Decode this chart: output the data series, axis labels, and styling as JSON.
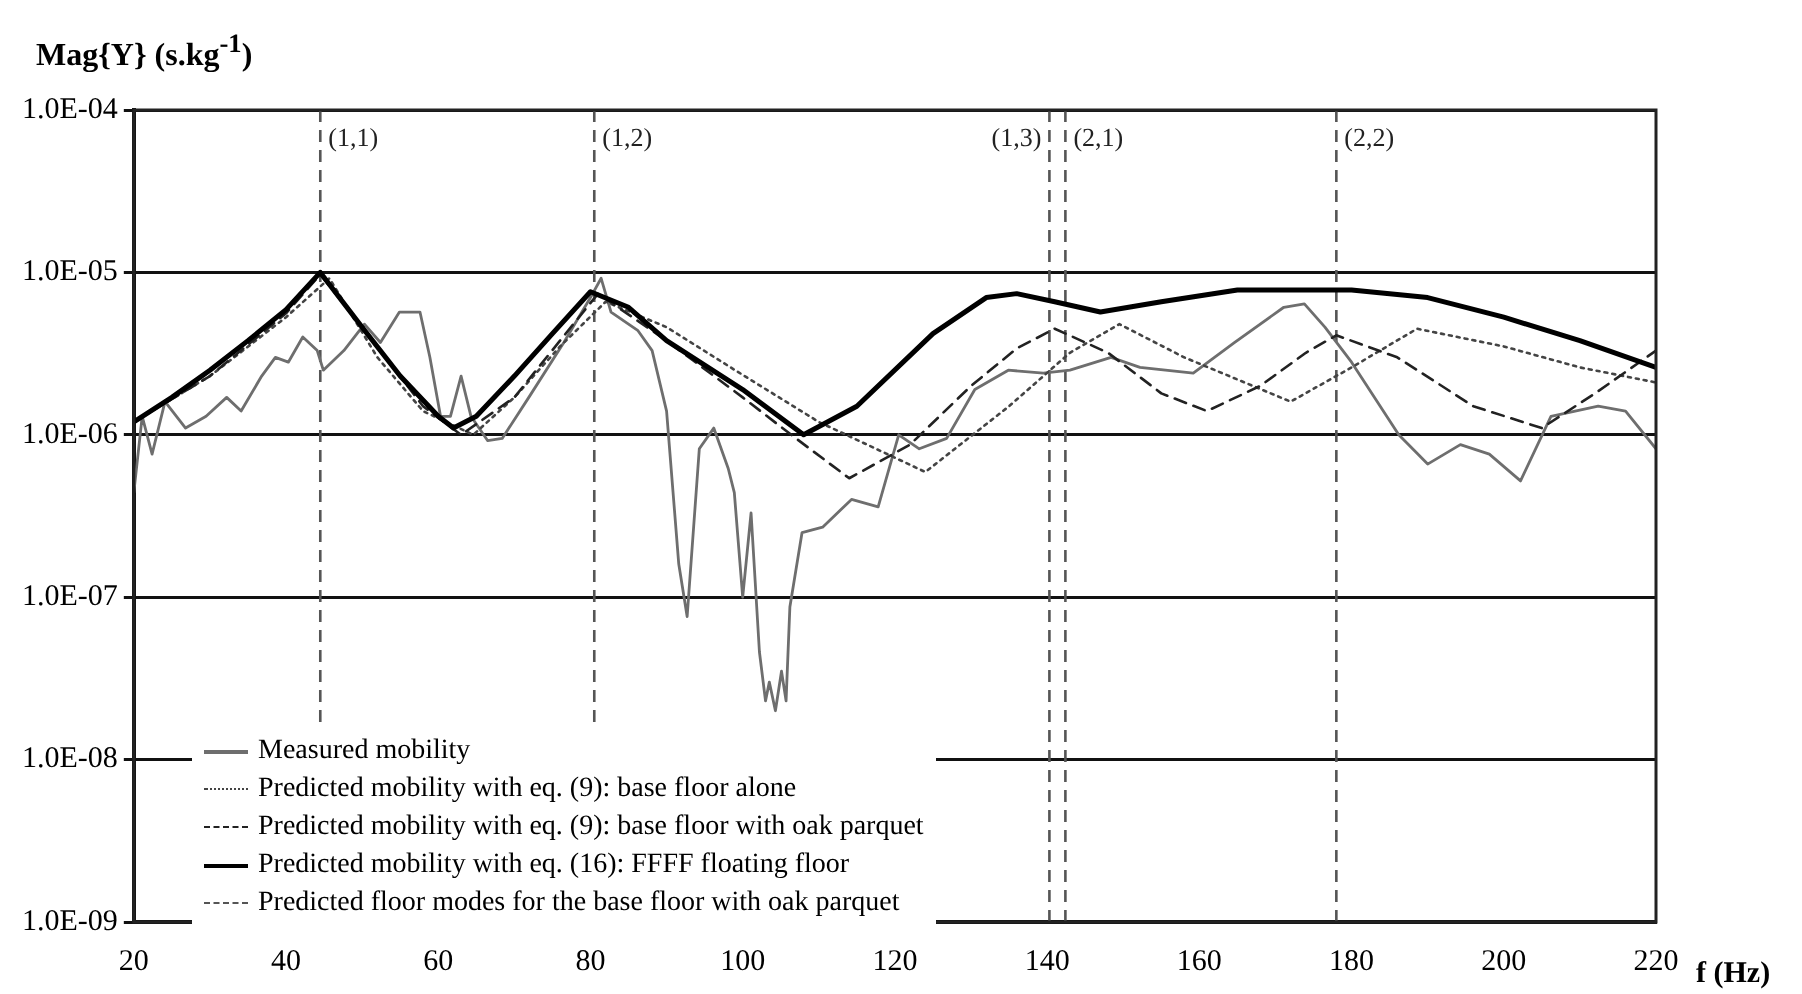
{
  "chart_data": {
    "type": "line",
    "xlabel": "f (Hz)",
    "ylabel": "Mag{Y} (s.kg$^{-1}$)",
    "log": "y",
    "grid": "y",
    "legend": "bottom left",
    "marker": "none",
    "xlim": [
      20,
      220
    ],
    "xticks": [
      20,
      40,
      60,
      80,
      100,
      120,
      140,
      160,
      180,
      200,
      220
    ],
    "ylim": [
      1e-09,
      0.0001
    ],
    "yticks": [
      {
        "value": 1e-09,
        "label": "1.0E-09"
      },
      {
        "value": 1e-08,
        "label": "1.0E-08"
      },
      {
        "value": 1e-07,
        "label": "1.0E-07"
      },
      {
        "value": 1e-06,
        "label": "1.0E-06"
      },
      {
        "value": 1e-05,
        "label": "1.0E-05"
      },
      {
        "value": 0.0001,
        "label": "1.0E-04"
      }
    ],
    "series": [
      {
        "name": "Measured mobility",
        "color": "#6e6e6e",
        "line_style": "solid",
        "x": [
          20.0,
          21.1,
          22.4,
          24.1,
          26.8,
          29.5,
          32.2,
          34.1,
          36.8,
          38.6,
          40.3,
          42.2,
          44.1,
          44.9,
          47.6,
          50.3,
          52.4,
          54.9,
          57.6,
          58.9,
          60.3,
          61.6,
          63.0,
          64.3,
          66.5,
          68.4,
          71.9,
          76.5,
          80.0,
          81.4,
          82.7,
          86.2,
          88.1,
          90.0,
          91.6,
          92.7,
          94.3,
          96.2,
          98.1,
          98.9,
          100.0,
          101.1,
          102.2,
          103.0,
          103.5,
          104.3,
          105.1,
          105.7,
          106.2,
          107.8,
          110.5,
          114.3,
          117.8,
          120.5,
          123.2,
          126.8,
          130.5,
          134.9,
          139.5,
          143.0,
          148.4,
          152.2,
          159.2,
          164.6,
          171.1,
          173.8,
          176.5,
          180.0,
          186.2,
          190.0,
          194.3,
          198.1,
          202.2,
          206.2,
          212.4,
          216.0,
          220.0
        ],
        "values": [
          4.4e-07,
          1.3e-06,
          7.6e-07,
          1.6e-06,
          1.1e-06,
          1.3e-06,
          1.7e-06,
          1.4e-06,
          2.3e-06,
          3e-06,
          2.8e-06,
          4e-06,
          3.3e-06,
          2.5e-06,
          3.3e-06,
          4.8e-06,
          3.7e-06,
          5.7e-06,
          5.7e-06,
          3e-06,
          1.3e-06,
          1.3e-06,
          2.3e-06,
          1.3e-06,
          9.2e-07,
          9.5e-07,
          1.7e-06,
          3.7e-06,
          7e-06,
          9.2e-06,
          5.7e-06,
          4.4e-06,
          3.3e-06,
          1.4e-06,
          1.6e-07,
          7.6e-08,
          8.2e-07,
          1.1e-06,
          6.2e-07,
          4.4e-07,
          1e-07,
          3.3e-07,
          4.6e-08,
          2.3e-08,
          3e-08,
          2e-08,
          3.5e-08,
          2.3e-08,
          8.7e-08,
          2.5e-07,
          2.7e-07,
          4e-07,
          3.6e-07,
          1e-06,
          8.2e-07,
          9.5e-07,
          1.9e-06,
          2.5e-06,
          2.4e-06,
          2.5e-06,
          3e-06,
          2.6e-06,
          2.4e-06,
          3.7e-06,
          6.1e-06,
          6.4e-06,
          4.6e-06,
          2.8e-06,
          1e-06,
          6.6e-07,
          8.7e-07,
          7.6e-07,
          5.2e-07,
          1.3e-06,
          1.5e-06,
          1.4e-06,
          8.2e-07
        ]
      },
      {
        "name": "Predicted mobility with eq. (9): base floor alone",
        "color": "#444444",
        "line_style": "dotted",
        "x": [
          20,
          30,
          40,
          45.7,
          52,
          58,
          64.6,
          70,
          76,
          82,
          90,
          99,
          110,
          124,
          135,
          143,
          149.5,
          158,
          172,
          180,
          188.6,
          200,
          210,
          220
        ],
        "values": [
          1.2e-06,
          2.3e-06,
          5.3e-06,
          9.2e-06,
          3e-06,
          1.4e-06,
          1e-06,
          1.7e-06,
          3.5e-06,
          6.6e-06,
          4.6e-06,
          2.5e-06,
          1.2e-06,
          5.9e-07,
          1.5e-06,
          3.2e-06,
          4.8e-06,
          3e-06,
          1.6e-06,
          2.6e-06,
          4.5e-06,
          3.5e-06,
          2.6e-06,
          2.1e-06
        ]
      },
      {
        "name": "Predicted mobility with eq. (9): base floor with oak parquet",
        "color": "#222222",
        "line_style": "dashed",
        "x": [
          20,
          30,
          40,
          44.5,
          52,
          58,
          63,
          70,
          76,
          81,
          90,
          100,
          107,
          114,
          122,
          130,
          136,
          141,
          148,
          155,
          161,
          168,
          174,
          178,
          186,
          196,
          205,
          212,
          220
        ],
        "values": [
          1.2e-06,
          2.3e-06,
          5.6e-06,
          9.7e-06,
          3.5e-06,
          1.5e-06,
          1e-06,
          1.7e-06,
          3.8e-06,
          7.4e-06,
          3.8e-06,
          1.7e-06,
          9.5e-07,
          5.4e-07,
          8.7e-07,
          2e-06,
          3.4e-06,
          4.5e-06,
          3.2e-06,
          1.8e-06,
          1.4e-06,
          2e-06,
          3.2e-06,
          4.1e-06,
          3e-06,
          1.5e-06,
          1.1e-06,
          1.8e-06,
          3.3e-06
        ]
      },
      {
        "name": "Predicted mobility with eq. (16): FFFF floating floor",
        "color": "#000000",
        "line_style": "solid",
        "x": [
          20,
          25,
          30,
          35,
          40,
          44.5,
          50,
          55,
          60,
          62,
          65,
          70,
          75,
          80,
          85,
          90,
          100,
          108,
          115,
          125,
          132,
          136,
          141,
          147,
          155,
          165,
          180,
          190,
          200,
          210,
          220
        ],
        "values": [
          1.2e-06,
          1.7e-06,
          2.5e-06,
          3.8e-06,
          5.9e-06,
          1e-05,
          4.6e-06,
          2.3e-06,
          1.3e-06,
          1.1e-06,
          1.3e-06,
          2.3e-06,
          4.2e-06,
          7.6e-06,
          6.1e-06,
          3.8e-06,
          1.9e-06,
          1e-06,
          1.5e-06,
          4.2e-06,
          7e-06,
          7.4e-06,
          6.6e-06,
          5.7e-06,
          6.6e-06,
          7.8e-06,
          7.8e-06,
          7e-06,
          5.3e-06,
          3.8e-06,
          2.6e-06
        ]
      }
    ],
    "ref_lines": [
      {
        "axis": "x",
        "value": 44.5,
        "color": "#555555",
        "line_style": "dashed"
      },
      {
        "axis": "x",
        "value": 80.5,
        "color": "#555555",
        "line_style": "dashed"
      },
      {
        "axis": "x",
        "value": 140.3,
        "color": "#555555",
        "line_style": "dashed"
      },
      {
        "axis": "x",
        "value": 142.4,
        "color": "#555555",
        "line_style": "dashed"
      },
      {
        "axis": "x",
        "value": 178,
        "color": "#555555",
        "line_style": "dashed"
      }
    ],
    "annotations": [
      "Predicted floor modes for the base floor with oak parquet",
      {
        "text": "(1,1)",
        "x": 44.5
      },
      {
        "text": "(1,2)",
        "x": 80.5
      },
      {
        "text": "(1,3)",
        "x": 140.3
      },
      {
        "text": "(2,1)",
        "x": 142.4
      },
      {
        "text": "(2,2)",
        "x": 178
      }
    ]
  }
}
